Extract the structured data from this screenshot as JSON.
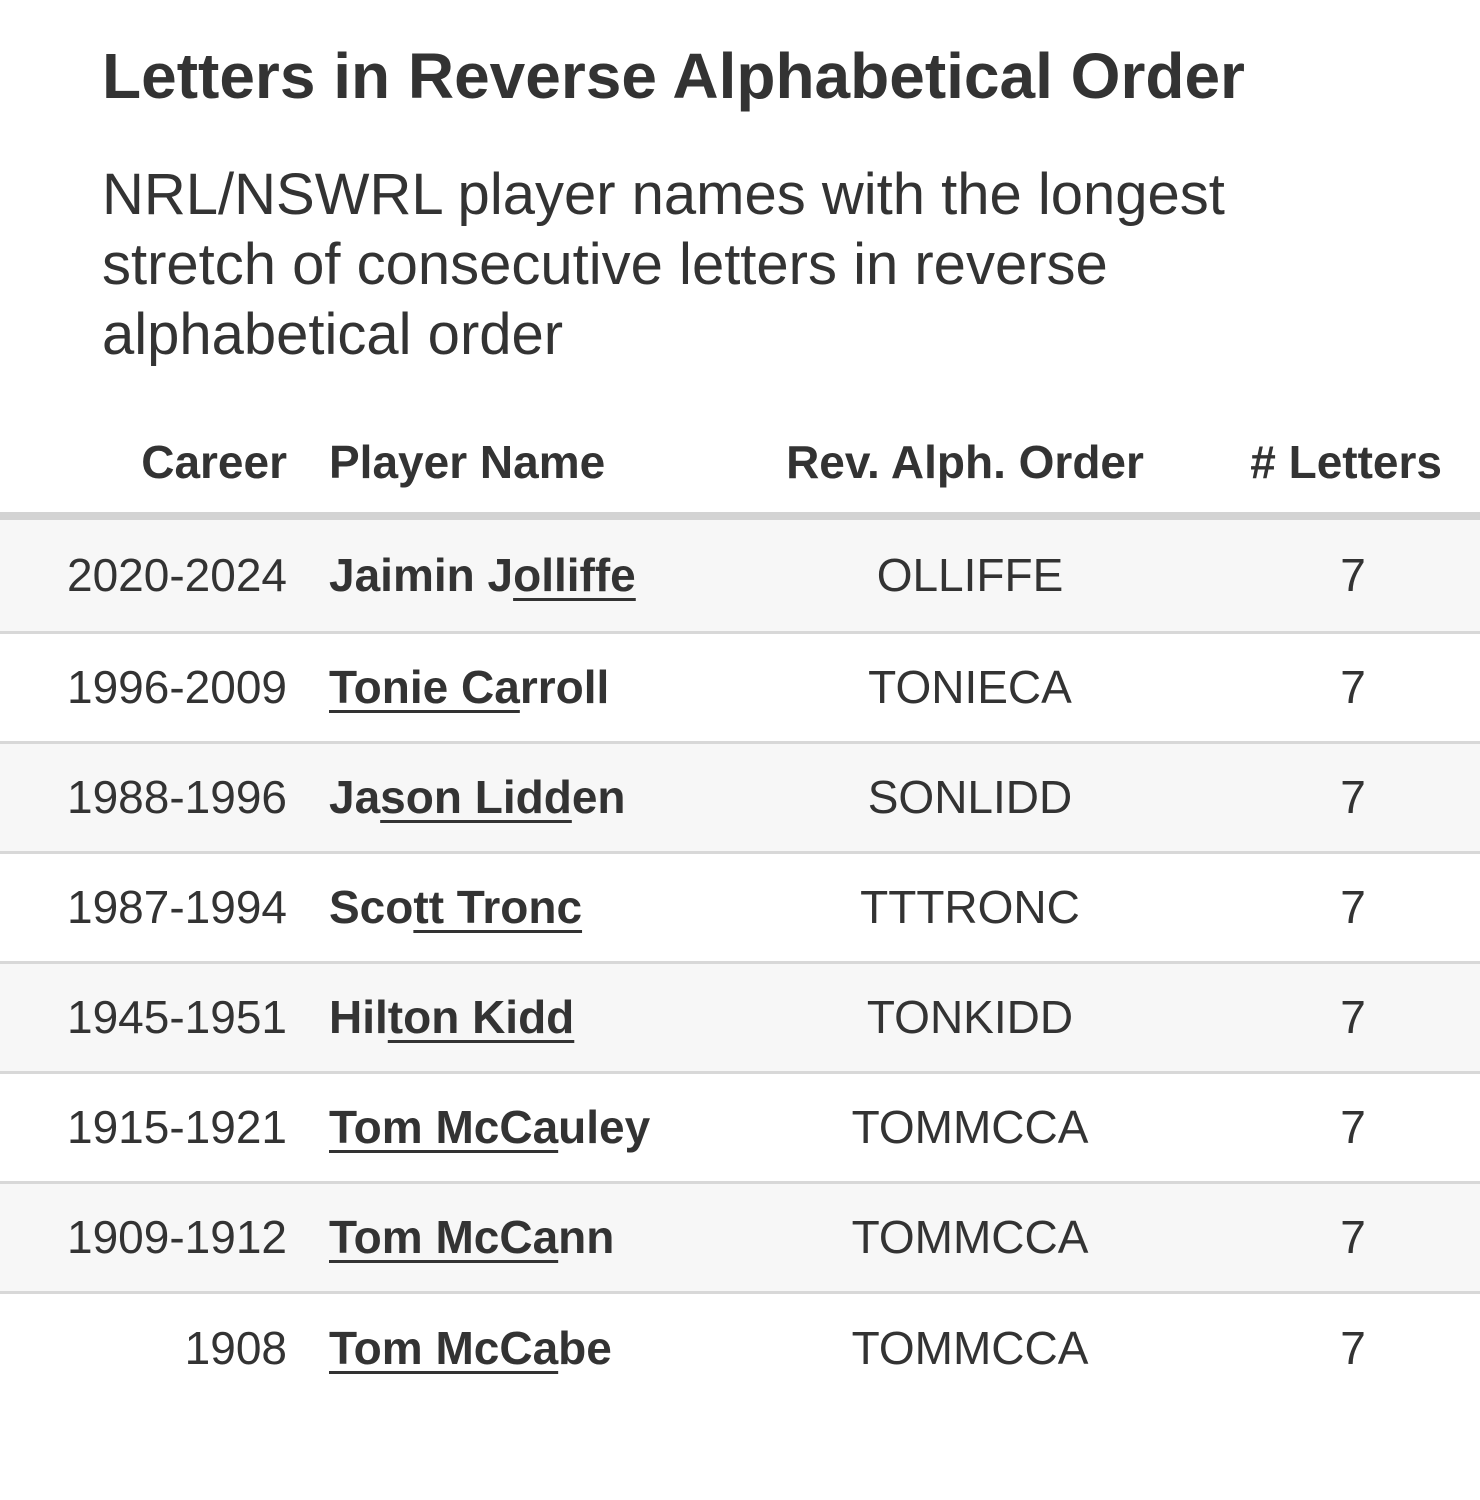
{
  "title": "Letters in Reverse Alphabetical Order",
  "subtitle": "NRL/NSWRL player names with the longest stretch of consecutive letters in reverse alphabetical order",
  "columns": {
    "career": "Career",
    "player": "Player Name",
    "rev": "Rev. Alph. Order",
    "letters": "# Letters"
  },
  "rows": [
    {
      "career": "2020-2024",
      "pre": "Jaimin J",
      "hl": "olliffe",
      "post": "",
      "rev": "OLLIFFE",
      "letters": "7"
    },
    {
      "career": "1996-2009",
      "pre": "",
      "hl": "Tonie Ca",
      "post": "rroll",
      "rev": "TONIECA",
      "letters": "7"
    },
    {
      "career": "1988-1996",
      "pre": "Ja",
      "hl": "son Lidd",
      "post": "en",
      "rev": "SONLIDD",
      "letters": "7"
    },
    {
      "career": "1987-1994",
      "pre": "Sco",
      "hl": "tt Tronc",
      "post": "",
      "rev": "TTTRONC",
      "letters": "7"
    },
    {
      "career": "1945-1951",
      "pre": "Hil",
      "hl": "ton Kidd",
      "post": "",
      "rev": "TONKIDD",
      "letters": "7"
    },
    {
      "career": "1915-1921",
      "pre": "",
      "hl": "Tom McCa",
      "post": "uley",
      "rev": "TOMMCCA",
      "letters": "7"
    },
    {
      "career": "1909-1912",
      "pre": "",
      "hl": "Tom McCa",
      "post": "nn",
      "rev": "TOMMCCA",
      "letters": "7"
    },
    {
      "career": "1908",
      "pre": "",
      "hl": "Tom McCa",
      "post": "be",
      "rev": "TOMMCCA",
      "letters": "7"
    }
  ]
}
